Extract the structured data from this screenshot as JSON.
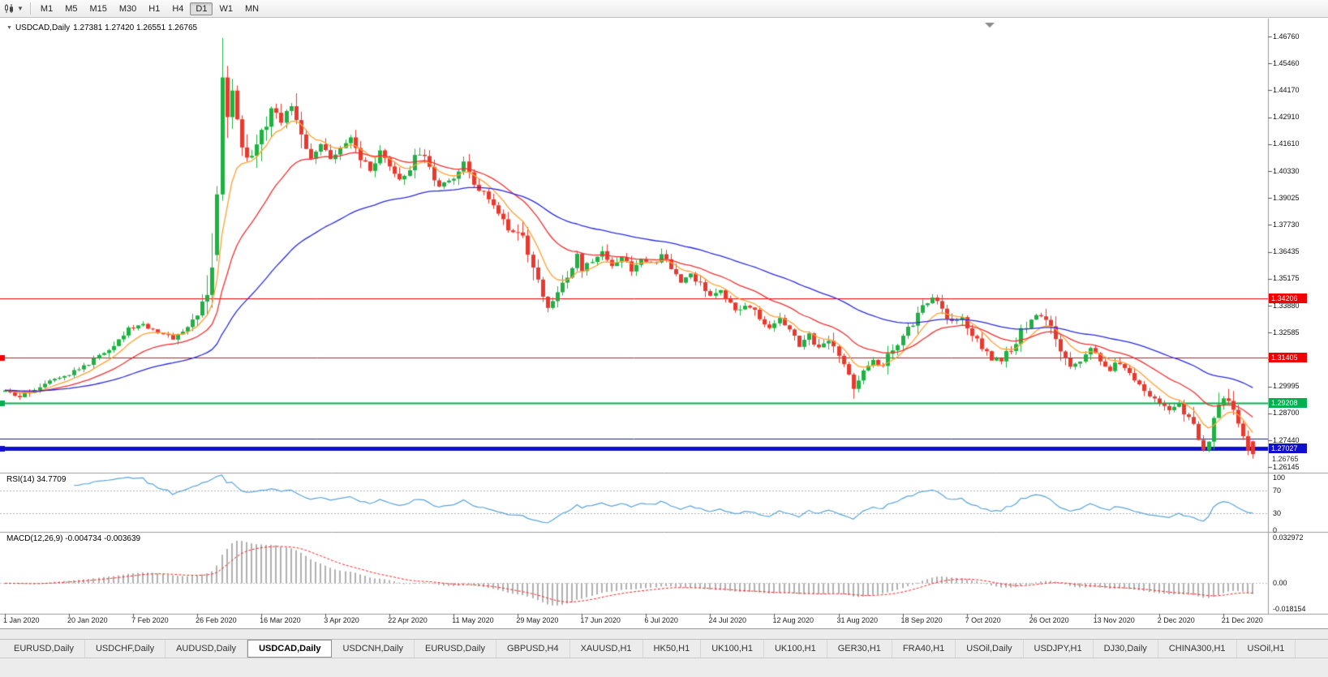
{
  "toolbar": {
    "chart_type_icon": "candlestick-chart-icon",
    "dropdown_icon": "caret-down-icon",
    "timeframes": [
      "M1",
      "M5",
      "M15",
      "M30",
      "H1",
      "H4",
      "D1",
      "W1",
      "MN"
    ],
    "active_timeframe": "D1"
  },
  "chart": {
    "symbol": "USDCAD,Daily",
    "ohlc_text": "1.27381 1.27420 1.26551 1.26765",
    "current_price": "1.26765"
  },
  "price_axis": {
    "labels": [
      "1.46760",
      "1.45460",
      "1.44170",
      "1.42910",
      "1.41610",
      "1.40330",
      "1.39025",
      "1.37730",
      "1.36435",
      "1.35175",
      "1.33880",
      "1.32585",
      "1.31285",
      "1.29995",
      "1.28700",
      "1.27440",
      "1.26145"
    ]
  },
  "hlines": [
    {
      "price": 1.34206,
      "label": "1.34206",
      "color": "#f00000",
      "width": 1,
      "marker": false
    },
    {
      "price": 1.31405,
      "label": "1.31405",
      "color": "#f00000",
      "width": 1,
      "marker": true
    },
    {
      "price": 1.29208,
      "label": "1.29208",
      "color": "#00b050",
      "width": 2,
      "marker": true
    },
    {
      "price": 1.2752,
      "label": "",
      "color": "#1010cc",
      "width": 1,
      "marker": false
    },
    {
      "price": 1.27027,
      "label": "1.27027",
      "color": "#1010cc",
      "width": 5,
      "marker": true
    }
  ],
  "indicators": {
    "rsi": {
      "label": "RSI(14) 34.7709",
      "axis": [
        "100",
        "70",
        "30",
        "0"
      ],
      "levels": [
        70,
        30
      ]
    },
    "macd": {
      "label": "MACD(12,26,9) -0.004734 -0.003639",
      "axis": [
        "0.032972",
        "0.00",
        "-0.018154"
      ],
      "max": 0.032972,
      "min": -0.018154
    }
  },
  "x_axis": {
    "step_days": 13,
    "labels": [
      "1 Jan 2020",
      "20 Jan 2020",
      "7 Feb 2020",
      "26 Feb 2020",
      "16 Mar 2020",
      "3 Apr 2020",
      "22 Apr 2020",
      "11 May 2020",
      "29 May 2020",
      "17 Jun 2020",
      "6 Jul 2020",
      "24 Jul 2020",
      "12 Aug 2020",
      "31 Aug 2020",
      "18 Sep 2020",
      "7 Oct 2020",
      "26 Oct 2020",
      "13 Nov 2020",
      "2 Dec 2020",
      "21 Dec 2020"
    ]
  },
  "chart_data": {
    "type": "candlestick",
    "symbol": "USDCAD",
    "timeframe": "Daily",
    "days": 254,
    "ylim": [
      1.26145,
      1.4676
    ],
    "colors": {
      "up": "#1fb141",
      "down": "#e8392e",
      "macd_hist": "#b0b0b0",
      "macd_signal": "#ff2020",
      "rsi_line": "#59a3d8"
    },
    "moving_averages": [
      {
        "period": 8,
        "type": "ema",
        "color": "#ffa033"
      },
      {
        "period": 21,
        "type": "ema",
        "color": "#f23030"
      },
      {
        "period": 55,
        "type": "ema",
        "color": "#2a2ae0"
      }
    ],
    "anchors": [
      [
        0,
        1.2975
      ],
      [
        3,
        1.2948
      ],
      [
        6,
        1.299
      ],
      [
        10,
        1.3045
      ],
      [
        13,
        1.3062
      ],
      [
        17,
        1.311
      ],
      [
        21,
        1.3185
      ],
      [
        25,
        1.3275
      ],
      [
        28,
        1.3298
      ],
      [
        31,
        1.3262
      ],
      [
        34,
        1.3232
      ],
      [
        37,
        1.3288
      ],
      [
        39,
        1.3335
      ],
      [
        41,
        1.348
      ],
      [
        42,
        1.362
      ],
      [
        43,
        1.392
      ],
      [
        44,
        1.448
      ],
      [
        45,
        1.429
      ],
      [
        46,
        1.442
      ],
      [
        47,
        1.428
      ],
      [
        48,
        1.416
      ],
      [
        50,
        1.407
      ],
      [
        52,
        1.419
      ],
      [
        54,
        1.433
      ],
      [
        56,
        1.427
      ],
      [
        58,
        1.434
      ],
      [
        60,
        1.421
      ],
      [
        62,
        1.411
      ],
      [
        64,
        1.417
      ],
      [
        66,
        1.407
      ],
      [
        68,
        1.413
      ],
      [
        70,
        1.4185
      ],
      [
        72,
        1.409
      ],
      [
        74,
        1.403
      ],
      [
        76,
        1.411
      ],
      [
        78,
        1.4045
      ],
      [
        80,
        1.3985
      ],
      [
        82,
        1.405
      ],
      [
        84,
        1.4125
      ],
      [
        86,
        1.4035
      ],
      [
        88,
        1.3965
      ],
      [
        91,
        1.4005
      ],
      [
        93,
        1.406
      ],
      [
        95,
        1.3985
      ],
      [
        97,
        1.3925
      ],
      [
        99,
        1.3865
      ],
      [
        101,
        1.3805
      ],
      [
        103,
        1.3725
      ],
      [
        104,
        1.3765
      ],
      [
        106,
        1.3625
      ],
      [
        108,
        1.3485
      ],
      [
        110,
        1.3395
      ],
      [
        112,
        1.3435
      ],
      [
        114,
        1.3535
      ],
      [
        116,
        1.3615
      ],
      [
        117,
        1.3565
      ],
      [
        119,
        1.3605
      ],
      [
        121,
        1.3645
      ],
      [
        123,
        1.3585
      ],
      [
        125,
        1.3625
      ],
      [
        127,
        1.3565
      ],
      [
        129,
        1.3605
      ],
      [
        131,
        1.3585
      ],
      [
        133,
        1.3625
      ],
      [
        135,
        1.3565
      ],
      [
        137,
        1.3505
      ],
      [
        139,
        1.3545
      ],
      [
        141,
        1.3485
      ],
      [
        143,
        1.3425
      ],
      [
        145,
        1.3465
      ],
      [
        147,
        1.3405
      ],
      [
        149,
        1.3355
      ],
      [
        151,
        1.3395
      ],
      [
        153,
        1.3325
      ],
      [
        155,
        1.3285
      ],
      [
        157,
        1.3335
      ],
      [
        159,
        1.3265
      ],
      [
        161,
        1.3205
      ],
      [
        163,
        1.3245
      ],
      [
        165,
        1.3175
      ],
      [
        167,
        1.3215
      ],
      [
        169,
        1.3135
      ],
      [
        171,
        1.3075
      ],
      [
        172,
        1.3005
      ],
      [
        174,
        1.3065
      ],
      [
        176,
        1.3135
      ],
      [
        178,
        1.3095
      ],
      [
        180,
        1.3175
      ],
      [
        182,
        1.3235
      ],
      [
        184,
        1.3305
      ],
      [
        186,
        1.3395
      ],
      [
        188,
        1.342
      ],
      [
        190,
        1.3365
      ],
      [
        192,
        1.3305
      ],
      [
        194,
        1.3335
      ],
      [
        196,
        1.3255
      ],
      [
        198,
        1.3195
      ],
      [
        200,
        1.3135
      ],
      [
        202,
        1.3125
      ],
      [
        204,
        1.3185
      ],
      [
        206,
        1.3265
      ],
      [
        208,
        1.333
      ],
      [
        210,
        1.3345
      ],
      [
        212,
        1.3265
      ],
      [
        214,
        1.3165
      ],
      [
        216,
        1.3085
      ],
      [
        218,
        1.3125
      ],
      [
        220,
        1.3175
      ],
      [
        222,
        1.3115
      ],
      [
        224,
        1.3085
      ],
      [
        226,
        1.3125
      ],
      [
        228,
        1.3055
      ],
      [
        230,
        1.3005
      ],
      [
        232,
        1.296
      ],
      [
        234,
        1.293
      ],
      [
        236,
        1.2892
      ],
      [
        238,
        1.2922
      ],
      [
        240,
        1.2852
      ],
      [
        241,
        1.28
      ],
      [
        242,
        1.2752
      ],
      [
        243,
        1.2705
      ],
      [
        244,
        1.2742
      ],
      [
        245,
        1.2825
      ],
      [
        246,
        1.2902
      ],
      [
        247,
        1.2952
      ],
      [
        248,
        1.2922
      ],
      [
        249,
        1.2862
      ],
      [
        250,
        1.2802
      ],
      [
        251,
        1.2752
      ],
      [
        252,
        1.2712
      ],
      [
        253,
        1.2676
      ]
    ],
    "key_candles": [
      {
        "day": 43,
        "o": 1.363,
        "h": 1.396,
        "l": 1.36,
        "c": 1.392
      },
      {
        "day": 44,
        "o": 1.392,
        "h": 1.46688,
        "l": 1.389,
        "c": 1.448
      },
      {
        "day": 45,
        "o": 1.448,
        "h": 1.4535,
        "l": 1.419,
        "c": 1.429
      },
      {
        "day": 253,
        "o": 1.27381,
        "h": 1.2742,
        "l": 1.26551,
        "c": 1.26765
      }
    ]
  },
  "tabs": {
    "active_index": 3,
    "items": [
      "EURUSD,Daily",
      "USDCHF,Daily",
      "AUDUSD,Daily",
      "USDCAD,Daily",
      "USDCNH,Daily",
      "EURUSD,Daily",
      "GBPUSD,H4",
      "XAUUSD,H1",
      "HK50,H1",
      "UK100,H1",
      "UK100,H1",
      "GER30,H1",
      "FRA40,H1",
      "USOil,Daily",
      "USDJPY,H1",
      "DJ30,Daily",
      "CHINA300,H1",
      "USOil,H1"
    ]
  }
}
